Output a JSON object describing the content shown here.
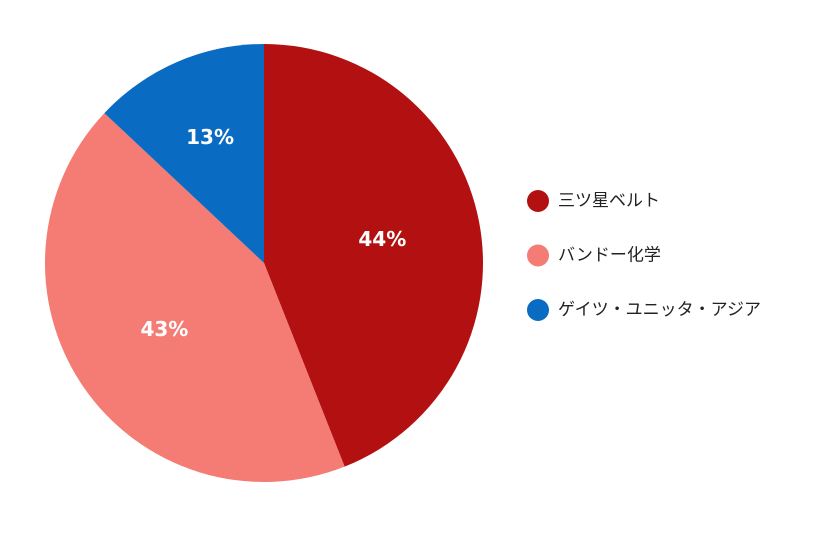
{
  "chart_data": {
    "type": "pie",
    "categories": [
      "三ツ星ベルト",
      "バンドー化学",
      "ゲイツ・ユニッタ・アジア"
    ],
    "values": [
      44,
      43,
      13
    ],
    "value_labels": [
      "44%",
      "43%",
      "13%"
    ],
    "colors": [
      "#b31111",
      "#f47c74",
      "#0a6bc2"
    ],
    "legend": "right"
  }
}
